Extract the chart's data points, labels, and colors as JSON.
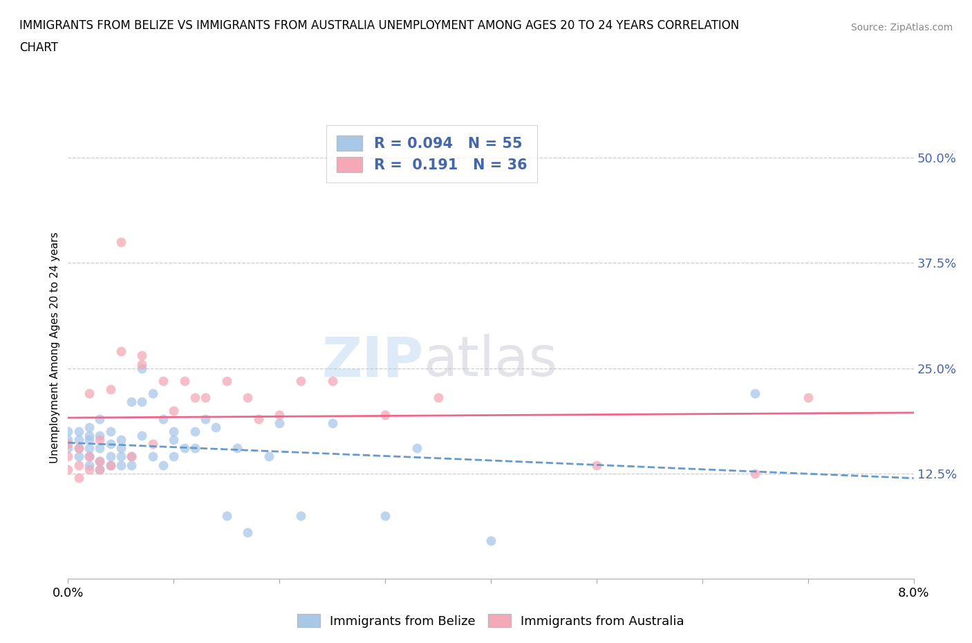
{
  "title_line1": "IMMIGRANTS FROM BELIZE VS IMMIGRANTS FROM AUSTRALIA UNEMPLOYMENT AMONG AGES 20 TO 24 YEARS CORRELATION",
  "title_line2": "CHART",
  "source": "Source: ZipAtlas.com",
  "ylabel": "Unemployment Among Ages 20 to 24 years",
  "xlim": [
    0.0,
    0.08
  ],
  "ylim": [
    0.0,
    0.55
  ],
  "xticks": [
    0.0,
    0.01,
    0.02,
    0.03,
    0.04,
    0.05,
    0.06,
    0.07,
    0.08
  ],
  "yticks_right": [
    0.0,
    0.125,
    0.25,
    0.375,
    0.5
  ],
  "belize_R": 0.094,
  "belize_N": 55,
  "australia_R": 0.191,
  "australia_N": 36,
  "belize_color": "#a8c8e8",
  "australia_color": "#f4a8b8",
  "belize_line_color": "#6699cc",
  "australia_line_color": "#ee6688",
  "tick_color": "#4466aa",
  "belize_x": [
    0.0,
    0.0,
    0.0,
    0.001,
    0.001,
    0.001,
    0.001,
    0.002,
    0.002,
    0.002,
    0.002,
    0.002,
    0.002,
    0.003,
    0.003,
    0.003,
    0.003,
    0.003,
    0.004,
    0.004,
    0.004,
    0.004,
    0.005,
    0.005,
    0.005,
    0.005,
    0.006,
    0.006,
    0.006,
    0.007,
    0.007,
    0.007,
    0.008,
    0.008,
    0.009,
    0.009,
    0.01,
    0.01,
    0.01,
    0.011,
    0.012,
    0.012,
    0.013,
    0.014,
    0.015,
    0.016,
    0.017,
    0.019,
    0.02,
    0.022,
    0.025,
    0.03,
    0.033,
    0.04,
    0.065
  ],
  "belize_y": [
    0.155,
    0.165,
    0.175,
    0.145,
    0.155,
    0.165,
    0.175,
    0.135,
    0.145,
    0.155,
    0.165,
    0.17,
    0.18,
    0.13,
    0.14,
    0.155,
    0.17,
    0.19,
    0.135,
    0.145,
    0.16,
    0.175,
    0.135,
    0.145,
    0.155,
    0.165,
    0.135,
    0.145,
    0.21,
    0.17,
    0.21,
    0.25,
    0.145,
    0.22,
    0.135,
    0.19,
    0.145,
    0.165,
    0.175,
    0.155,
    0.155,
    0.175,
    0.19,
    0.18,
    0.075,
    0.155,
    0.055,
    0.145,
    0.185,
    0.075,
    0.185,
    0.075,
    0.155,
    0.045,
    0.22
  ],
  "australia_x": [
    0.0,
    0.0,
    0.0,
    0.001,
    0.001,
    0.001,
    0.002,
    0.002,
    0.002,
    0.003,
    0.003,
    0.003,
    0.004,
    0.004,
    0.005,
    0.005,
    0.006,
    0.007,
    0.007,
    0.008,
    0.009,
    0.01,
    0.011,
    0.012,
    0.013,
    0.015,
    0.017,
    0.018,
    0.02,
    0.022,
    0.025,
    0.03,
    0.035,
    0.05,
    0.065,
    0.07
  ],
  "australia_y": [
    0.13,
    0.145,
    0.16,
    0.12,
    0.135,
    0.155,
    0.13,
    0.145,
    0.22,
    0.13,
    0.14,
    0.165,
    0.135,
    0.225,
    0.4,
    0.27,
    0.145,
    0.255,
    0.265,
    0.16,
    0.235,
    0.2,
    0.235,
    0.215,
    0.215,
    0.235,
    0.215,
    0.19,
    0.195,
    0.235,
    0.235,
    0.195,
    0.215,
    0.135,
    0.125,
    0.215
  ]
}
